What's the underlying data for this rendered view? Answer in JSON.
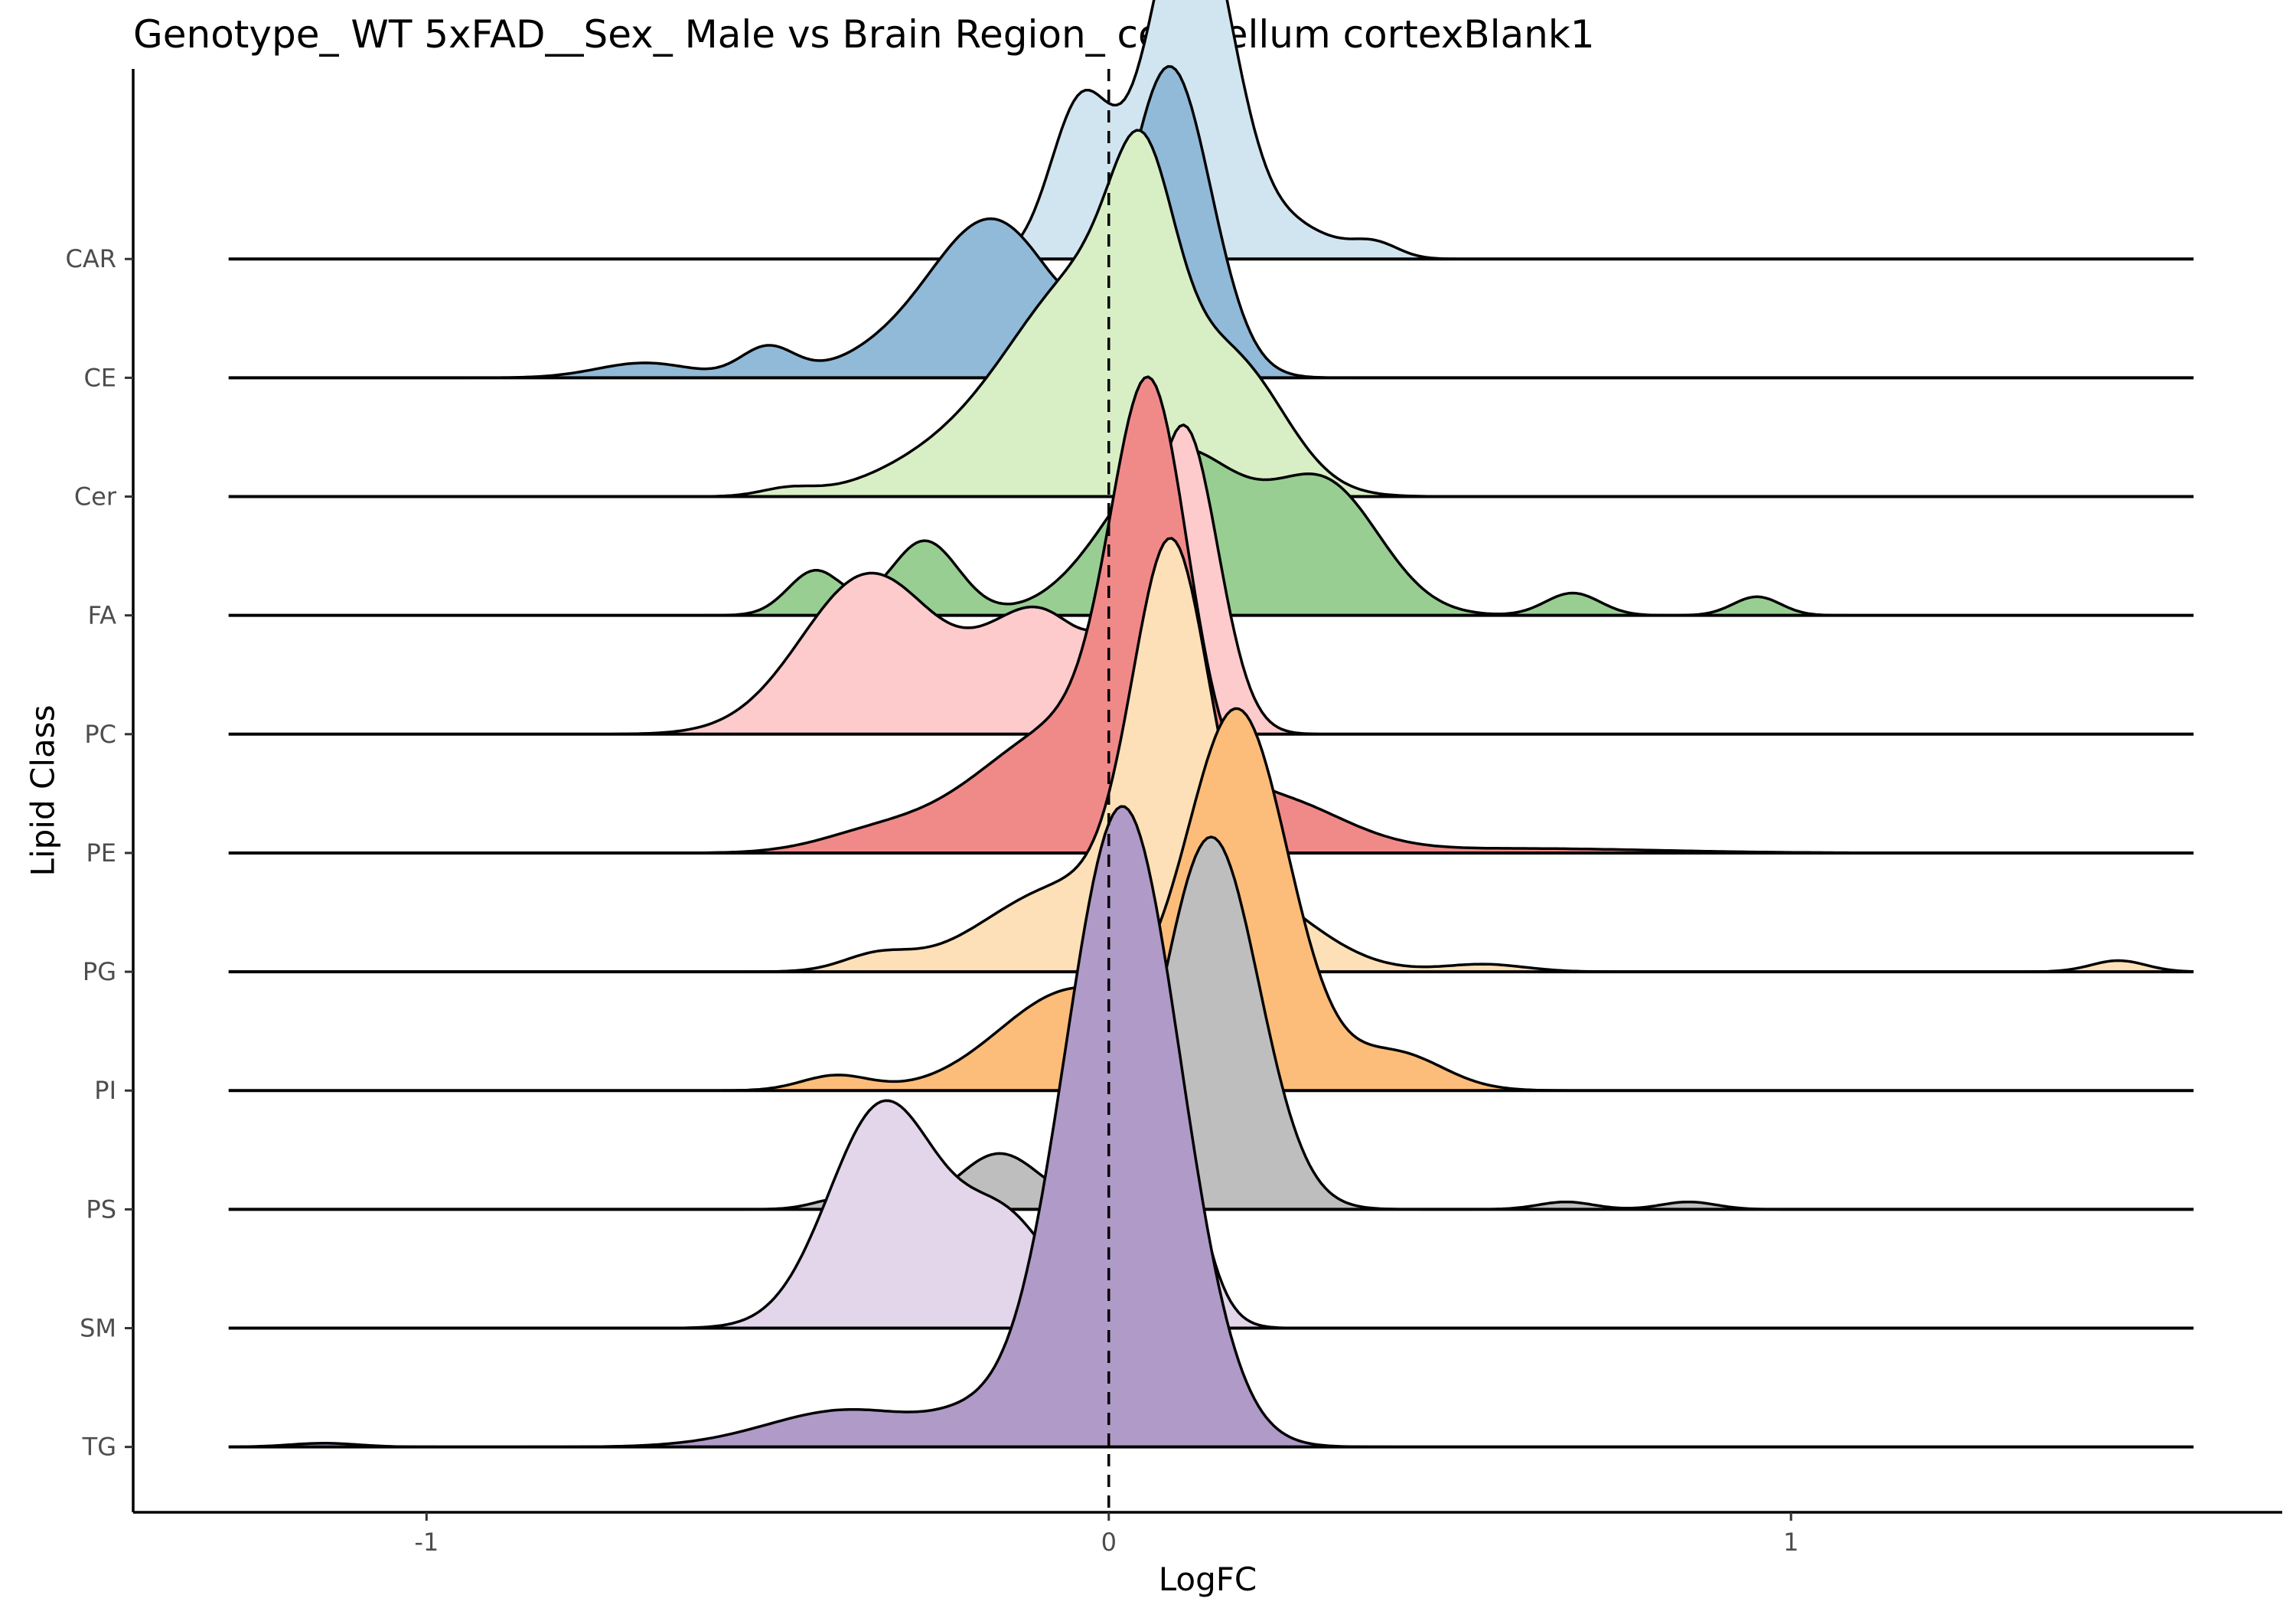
{
  "chart_data": {
    "type": "ridgeline",
    "title": "Genotype_ WT 5xFAD__Sex_ Male vs Brain Region_ cerebellum cortexBlank1",
    "xlabel": "LogFC",
    "ylabel": "Lipid Class",
    "xlim": [
      -1.43,
      1.72
    ],
    "x_ticks": [
      -1,
      0,
      1
    ],
    "x_tick_labels": [
      "-1",
      "0",
      "1"
    ],
    "reference_line": {
      "x": 0,
      "style": "dashed"
    },
    "grid": false,
    "legend": "none",
    "density_range": [
      -1.29,
      1.59
    ],
    "ridge_scale": 0.285,
    "series": [
      {
        "name": "CAR",
        "color": "#d1e5f1",
        "components": [
          [
            -0.04,
            0.045,
            0.42
          ],
          [
            0.12,
            0.06,
            1.0
          ],
          [
            0.39,
            0.035,
            0.04
          ],
          [
            0.27,
            0.06,
            0.08
          ]
        ]
      },
      {
        "name": "CE",
        "color": "#91bad9",
        "components": [
          [
            0.09,
            0.06,
            0.83
          ],
          [
            -0.17,
            0.09,
            0.42
          ],
          [
            -0.5,
            0.04,
            0.08
          ],
          [
            -0.68,
            0.07,
            0.04
          ],
          [
            -0.33,
            0.08,
            0.05
          ]
        ]
      },
      {
        "name": "Cer",
        "color": "#d8efc6",
        "components": [
          [
            0.05,
            0.045,
            0.42
          ],
          [
            -0.02,
            0.13,
            0.62
          ],
          [
            0.2,
            0.07,
            0.22
          ],
          [
            -0.28,
            0.09,
            0.05
          ],
          [
            -0.47,
            0.04,
            0.02
          ]
        ]
      },
      {
        "name": "FA",
        "color": "#99ce92",
        "components": [
          [
            0.1,
            0.1,
            0.44
          ],
          [
            0.32,
            0.08,
            0.33
          ],
          [
            -0.27,
            0.05,
            0.2
          ],
          [
            -0.43,
            0.04,
            0.12
          ],
          [
            0.68,
            0.04,
            0.06
          ],
          [
            0.95,
            0.035,
            0.05
          ]
        ]
      },
      {
        "name": "PC",
        "color": "#fdcbcc",
        "components": [
          [
            0.11,
            0.05,
            0.82
          ],
          [
            -0.35,
            0.1,
            0.43
          ],
          [
            -0.1,
            0.08,
            0.32
          ],
          [
            0.0,
            0.03,
            0.07
          ]
        ]
      },
      {
        "name": "PE",
        "color": "#f08a89",
        "components": [
          [
            0.06,
            0.055,
            1.0
          ],
          [
            -0.05,
            0.14,
            0.35
          ],
          [
            0.25,
            0.1,
            0.12
          ],
          [
            -0.35,
            0.08,
            0.04
          ],
          [
            0.6,
            0.2,
            0.012
          ]
        ]
      },
      {
        "name": "PG",
        "color": "#fde0b7",
        "components": [
          [
            0.09,
            0.055,
            0.95
          ],
          [
            -0.06,
            0.12,
            0.23
          ],
          [
            0.2,
            0.1,
            0.2
          ],
          [
            -0.34,
            0.05,
            0.04
          ],
          [
            0.55,
            0.06,
            0.02
          ],
          [
            1.48,
            0.04,
            0.03
          ]
        ]
      },
      {
        "name": "PI",
        "color": "#fdbd7a",
        "components": [
          [
            0.19,
            0.075,
            1.0
          ],
          [
            -0.05,
            0.11,
            0.27
          ],
          [
            0.42,
            0.07,
            0.1
          ],
          [
            -0.4,
            0.05,
            0.04
          ]
        ]
      },
      {
        "name": "PS",
        "color": "#bebebe",
        "components": [
          [
            0.15,
            0.07,
            1.0
          ],
          [
            -0.16,
            0.06,
            0.15
          ],
          [
            0.0,
            0.03,
            0.07
          ],
          [
            -0.39,
            0.04,
            0.03
          ],
          [
            0.67,
            0.04,
            0.02
          ],
          [
            0.85,
            0.04,
            0.02
          ]
        ]
      },
      {
        "name": "SM",
        "color": "#e3d6ea",
        "components": [
          [
            0.07,
            0.05,
            0.76
          ],
          [
            -0.33,
            0.08,
            0.6
          ],
          [
            -0.15,
            0.07,
            0.28
          ],
          [
            0.01,
            0.03,
            0.05
          ]
        ]
      },
      {
        "name": "TG",
        "color": "#b09ac8",
        "components": [
          [
            0.02,
            0.085,
            1.72
          ],
          [
            -0.38,
            0.12,
            0.1
          ],
          [
            -0.2,
            0.06,
            0.05
          ],
          [
            -1.15,
            0.05,
            0.01
          ]
        ]
      }
    ]
  }
}
